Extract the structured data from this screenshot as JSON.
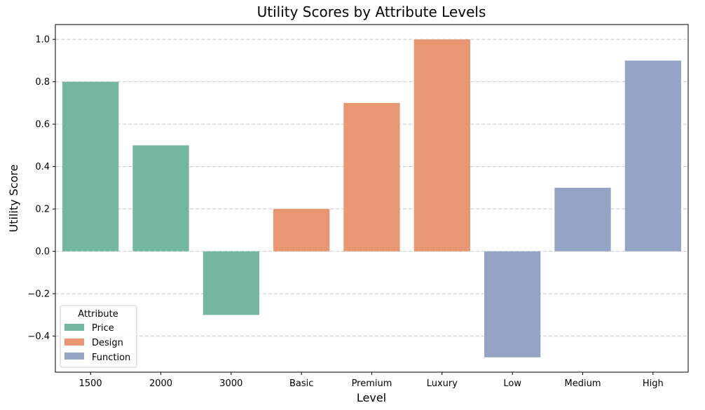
{
  "chart_data": {
    "type": "bar",
    "title": "Utility Scores by Attribute Levels",
    "xlabel": "Level",
    "ylabel": "Utility Score",
    "categories": [
      "1500",
      "2000",
      "3000",
      "Basic",
      "Premium",
      "Luxury",
      "Low",
      "Medium",
      "High"
    ],
    "values": [
      0.8,
      0.5,
      -0.3,
      0.2,
      0.7,
      1.0,
      -0.5,
      0.3,
      0.9
    ],
    "groups": [
      "Price",
      "Price",
      "Price",
      "Design",
      "Design",
      "Design",
      "Function",
      "Function",
      "Function"
    ],
    "ylim": [
      -0.57,
      1.07
    ],
    "yticks": [
      "1.0",
      "0.8",
      "0.6",
      "0.4",
      "0.2",
      "0.0",
      "−0.2",
      "−0.4"
    ],
    "ytick_values": [
      1.0,
      0.8,
      0.6,
      0.4,
      0.2,
      0.0,
      -0.2,
      -0.4
    ],
    "grid": "y-dashed",
    "legend": {
      "title": "Attribute",
      "placement": "lower-left",
      "entries": [
        {
          "name": "Price",
          "color": "#73b7a1"
        },
        {
          "name": "Design",
          "color": "#e99672"
        },
        {
          "name": "Function",
          "color": "#95a4c4"
        }
      ]
    }
  }
}
